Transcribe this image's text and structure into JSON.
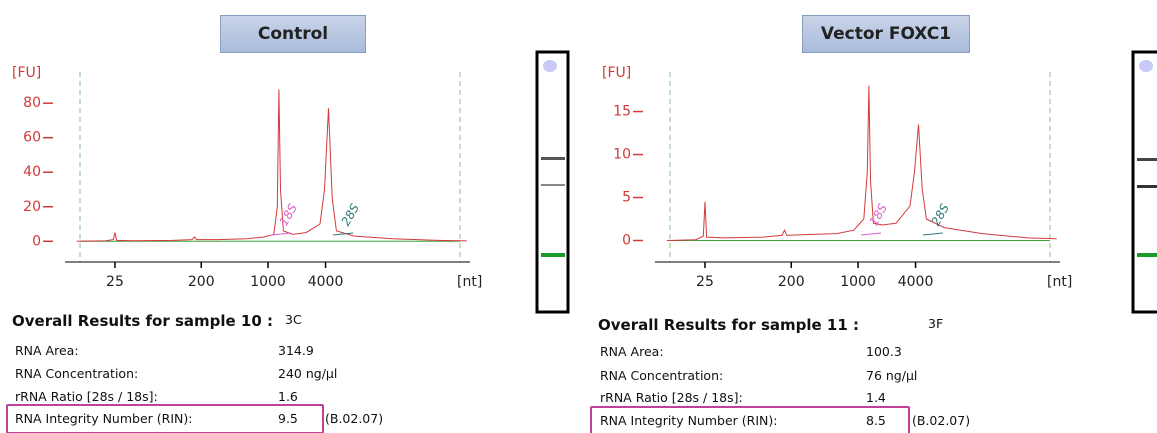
{
  "chart_data": [
    {
      "type": "line",
      "title": "Control",
      "y_label": "[FU]",
      "x_label": "[nt]",
      "log_x": true,
      "color": "#d03a3a",
      "x": [
        10,
        20,
        24,
        25,
        26,
        40,
        100,
        160,
        170,
        180,
        300,
        600,
        900,
        1150,
        1250,
        1300,
        1350,
        1450,
        1800,
        2500,
        3500,
        3900,
        4300,
        4700,
        5200,
        8000,
        20000,
        60000,
        120000
      ],
      "values": [
        0,
        0.3,
        1,
        5,
        0.5,
        0.3,
        0.5,
        1,
        2.5,
        1,
        1,
        1.5,
        2.5,
        4,
        20,
        88,
        30,
        6,
        4,
        5,
        10,
        30,
        77,
        25,
        6,
        3,
        1.5,
        0.5,
        0.2
      ],
      "xlim": [
        7.5,
        130000
      ],
      "ylim": [
        -12,
        105
      ],
      "xticks": [
        25,
        200,
        1000,
        4000
      ],
      "yticks": [
        0,
        20,
        40,
        60,
        80
      ],
      "annotations": [
        "18S",
        "28S"
      ]
    },
    {
      "type": "line",
      "title": "Vector FOXC1",
      "y_label": "[FU]",
      "x_label": "[nt]",
      "log_x": true,
      "color": "#d03a3a",
      "x": [
        10,
        20,
        24,
        25,
        26,
        40,
        100,
        160,
        170,
        180,
        300,
        600,
        900,
        1150,
        1250,
        1300,
        1350,
        1450,
        1800,
        2500,
        3500,
        3900,
        4300,
        4700,
        5200,
        8000,
        20000,
        60000,
        120000
      ],
      "values": [
        0,
        0.1,
        0.5,
        4.5,
        0.4,
        0.3,
        0.4,
        0.6,
        1.2,
        0.6,
        0.7,
        0.8,
        1.2,
        2.5,
        8,
        18,
        7,
        2,
        1.8,
        2,
        4,
        8,
        13.5,
        6,
        2.5,
        1.5,
        0.8,
        0.3,
        0.2
      ],
      "xlim": [
        7.5,
        130000
      ],
      "ylim": [
        -2.5,
        21
      ],
      "xticks": [
        25,
        200,
        1000,
        4000
      ],
      "yticks": [
        0,
        5,
        10,
        15
      ],
      "annotations": [
        "18S",
        "28S"
      ]
    }
  ],
  "results": [
    {
      "heading": "Overall Results for sample 10 :",
      "sample_id": "3C",
      "rows": [
        [
          "RNA Area:",
          "314.9"
        ],
        [
          "RNA Concentration:",
          "240 ng/µl"
        ],
        [
          "rRNA Ratio [28s / 18s]:",
          "1.6"
        ],
        [
          "RNA Integrity Number (RIN):",
          "9.5"
        ]
      ],
      "version": "(B.02.07)"
    },
    {
      "heading": "Overall Results for sample 11 :",
      "sample_id": "3F",
      "rows": [
        [
          "RNA Area:",
          "100.3"
        ],
        [
          "RNA Concentration:",
          "76 ng/µl"
        ],
        [
          "rRNA Ratio [28s / 18s]:",
          "1.4"
        ],
        [
          "RNA Integrity Number (RIN):",
          "8.5"
        ]
      ],
      "version": "(B.02.07)"
    }
  ]
}
